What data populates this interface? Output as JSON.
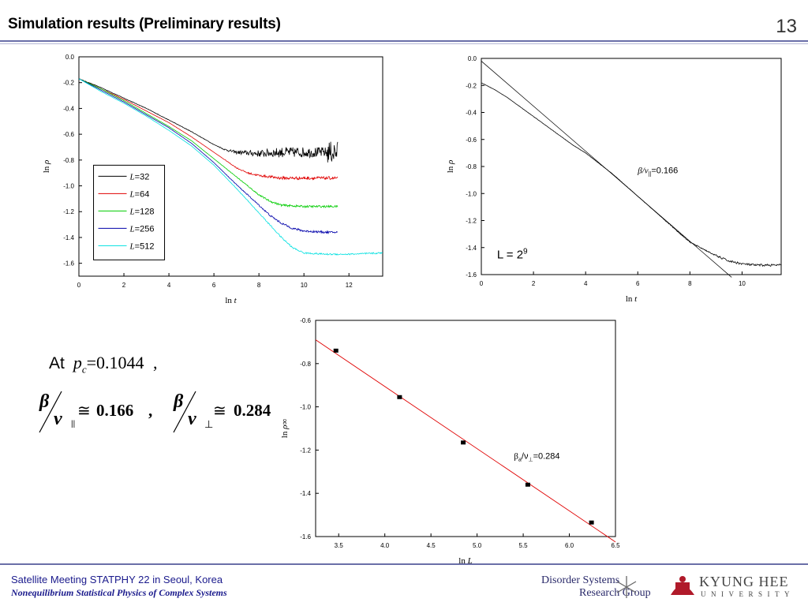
{
  "header": {
    "title": "Simulation results (Preliminary results)",
    "page_number": "13"
  },
  "footer": {
    "line1": "Satellite Meeting STATPHY 22 in Seoul, Korea",
    "line2": "Nonequilibrium Statistical Physics of Complex Systems"
  },
  "logos": {
    "dsrg": [
      "Disorder Systems",
      "Research Group"
    ],
    "khu_line1": "KYUNG HEE",
    "khu_line2": "UNIVERSITY"
  },
  "equations": {
    "at": "At",
    "pc_symbol": "p",
    "pc_sub": "c",
    "pc_value": "=0.1044",
    "comma": ",",
    "beta": "β",
    "nu": "ν",
    "par": "||",
    "perp": "⊥",
    "approx": "≅",
    "ratio1": "0.166",
    "ratio2": "0.284",
    "sep": ","
  },
  "colors": {
    "L32": "#000000",
    "L64": "#e00000",
    "L128": "#00cc00",
    "L256": "#0000aa",
    "L512": "#00e0e0",
    "fit": "#e00000",
    "rule": "#6a6fa8"
  },
  "chart_data": [
    {
      "type": "line",
      "xlabel": "ln t",
      "ylabel": "ln ρ",
      "xlim": [
        0,
        13.5
      ],
      "ylim": [
        -1.7,
        0
      ],
      "x_ticks": [
        "0",
        "2",
        "4",
        "6",
        "8",
        "10",
        "12"
      ],
      "y_ticks": [
        "0.0",
        "-0.2",
        "-0.4",
        "-0.6",
        "-0.8",
        "-1.0",
        "-1.2",
        "-1.4",
        "-1.6"
      ],
      "legend_position": "bottom-left",
      "series": [
        {
          "name": "L=32",
          "color": "#000000",
          "x": [
            0,
            1,
            2,
            3,
            4,
            5,
            5.5,
            6,
            6.5,
            7,
            8,
            9,
            10,
            11,
            11.5
          ],
          "y": [
            -0.17,
            -0.24,
            -0.32,
            -0.4,
            -0.49,
            -0.58,
            -0.63,
            -0.68,
            -0.72,
            -0.74,
            -0.75,
            -0.74,
            -0.74,
            -0.74,
            -0.74
          ],
          "noise": 0.04
        },
        {
          "name": "L=64",
          "color": "#e00000",
          "x": [
            0,
            1,
            2,
            3,
            4,
            5,
            6,
            6.5,
            7,
            7.5,
            8,
            9,
            10,
            11,
            11.5
          ],
          "y": [
            -0.17,
            -0.25,
            -0.33,
            -0.42,
            -0.51,
            -0.62,
            -0.74,
            -0.8,
            -0.86,
            -0.9,
            -0.92,
            -0.94,
            -0.94,
            -0.94,
            -0.94
          ],
          "noise": 0.012
        },
        {
          "name": "L=128",
          "color": "#00cc00",
          "x": [
            0,
            1,
            2,
            3,
            4,
            5,
            6,
            7,
            7.5,
            8,
            8.5,
            9,
            10,
            11,
            11.5
          ],
          "y": [
            -0.17,
            -0.25,
            -0.34,
            -0.44,
            -0.54,
            -0.65,
            -0.79,
            -0.93,
            -1.0,
            -1.07,
            -1.12,
            -1.15,
            -1.16,
            -1.16,
            -1.16
          ],
          "noise": 0.008
        },
        {
          "name": "L=256",
          "color": "#0000aa",
          "x": [
            0,
            1,
            2,
            3,
            4,
            5,
            6,
            7,
            8,
            8.5,
            9,
            9.5,
            10,
            11,
            11.5
          ],
          "y": [
            -0.17,
            -0.26,
            -0.35,
            -0.45,
            -0.55,
            -0.67,
            -0.82,
            -0.99,
            -1.15,
            -1.23,
            -1.29,
            -1.33,
            -1.35,
            -1.36,
            -1.36
          ],
          "noise": 0.008
        },
        {
          "name": "L=512",
          "color": "#00e0e0",
          "x": [
            0,
            1,
            2,
            3,
            4,
            5,
            6,
            7,
            8,
            9,
            9.5,
            10,
            11,
            12,
            13.5
          ],
          "y": [
            -0.17,
            -0.27,
            -0.36,
            -0.46,
            -0.57,
            -0.69,
            -0.84,
            -1.02,
            -1.21,
            -1.4,
            -1.48,
            -1.52,
            -1.53,
            -1.53,
            -1.52
          ],
          "noise": 0.006
        }
      ]
    },
    {
      "type": "line",
      "xlabel": "ln t",
      "ylabel": "ln ρ",
      "xlim": [
        0,
        11.5
      ],
      "ylim": [
        -1.6,
        0
      ],
      "x_ticks": [
        "0",
        "2",
        "4",
        "6",
        "8",
        "10"
      ],
      "y_ticks": [
        "0.0",
        "-0.2",
        "-0.4",
        "-0.6",
        "-0.8",
        "-1.0",
        "-1.2",
        "-1.4",
        "-1.6"
      ],
      "annotation": {
        "prefix": "β/ν",
        "sub": "||",
        "value": "=0.166",
        "x": 6,
        "y": -0.85
      },
      "label": {
        "text": "L = 2",
        "sup": "9",
        "x": 0.6,
        "y": -1.48
      },
      "series": [
        {
          "name": "data",
          "color": "#000000",
          "x": [
            0,
            0.5,
            1,
            1.5,
            2,
            2.5,
            3,
            3.5,
            4,
            5,
            6,
            7,
            8,
            9,
            9.5,
            10,
            10.5,
            11,
            11.5
          ],
          "y": [
            -0.18,
            -0.23,
            -0.29,
            -0.36,
            -0.43,
            -0.5,
            -0.57,
            -0.64,
            -0.7,
            -0.85,
            -1.02,
            -1.19,
            -1.36,
            -1.46,
            -1.5,
            -1.52,
            -1.53,
            -1.53,
            -1.53
          ],
          "noise": 0.005
        },
        {
          "name": "fit",
          "color": "#000000",
          "x": [
            0,
            9.6
          ],
          "y": [
            -0.02,
            -1.62
          ]
        }
      ]
    },
    {
      "type": "scatter",
      "xlabel": "ln L",
      "ylabel": "ln ρ∞",
      "xlim": [
        3.25,
        6.5
      ],
      "ylim": [
        -1.6,
        -0.6
      ],
      "x_ticks": [
        "3.5",
        "4.0",
        "4.5",
        "5.0",
        "5.5",
        "6.0",
        "6.5"
      ],
      "y_ticks": [
        "-0.6",
        "-0.8",
        "-1.0",
        "-1.2",
        "-1.4",
        "-1.6"
      ],
      "annotation": {
        "prefix": "β",
        "sub1": "a",
        "mid": "/ν",
        "sub2": "⊥",
        "value": "=0.284",
        "x": 5.4,
        "y": -1.24
      },
      "points": {
        "x": [
          3.47,
          4.16,
          4.85,
          5.55,
          6.24
        ],
        "y": [
          -0.74,
          -0.955,
          -1.165,
          -1.36,
          -1.535
        ],
        "err": 0.008
      },
      "fit": {
        "x": [
          3.25,
          6.5
        ],
        "y": [
          -0.69,
          -1.625
        ],
        "color": "#e00000"
      }
    }
  ]
}
